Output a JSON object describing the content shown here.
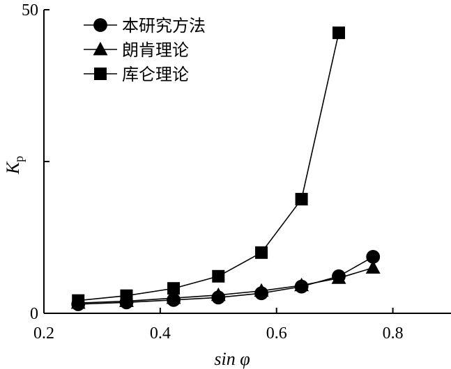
{
  "chart_data": {
    "type": "line",
    "title": "",
    "xlabel": "sin φ",
    "ylabel": "Kp",
    "ylabel_main": "K",
    "ylabel_sub": "p",
    "xlim": [
      0.2,
      0.9
    ],
    "ylim": [
      0,
      50
    ],
    "x_ticks": [
      0.2,
      0.4,
      0.6,
      0.8
    ],
    "x_tick_labels": [
      "0.2",
      "0.4",
      "0.6",
      "0.8"
    ],
    "y_ticks_labeled": [
      0,
      50
    ],
    "y_tick_labels": [
      "0",
      "50"
    ],
    "y_ticks_minor": [
      25
    ],
    "legend_position": "top-left",
    "series": [
      {
        "name": "本研究方法",
        "marker": "circle",
        "x": [
          0.259,
          0.342,
          0.423,
          0.5,
          0.574,
          0.643,
          0.707,
          0.766
        ],
        "values": [
          1.5,
          1.8,
          2.2,
          2.6,
          3.3,
          4.4,
          6.1,
          9.3
        ]
      },
      {
        "name": "朗肯理论",
        "marker": "triangle",
        "x": [
          0.259,
          0.342,
          0.423,
          0.5,
          0.574,
          0.643,
          0.707,
          0.766
        ],
        "values": [
          1.7,
          2.0,
          2.5,
          3.0,
          3.7,
          4.6,
          5.8,
          7.5
        ]
      },
      {
        "name": "库仑理论",
        "marker": "square",
        "x": [
          0.259,
          0.342,
          0.423,
          0.5,
          0.574,
          0.643,
          0.707
        ],
        "values": [
          2.1,
          2.9,
          4.1,
          6.1,
          10.0,
          18.8,
          46.2
        ]
      }
    ]
  }
}
